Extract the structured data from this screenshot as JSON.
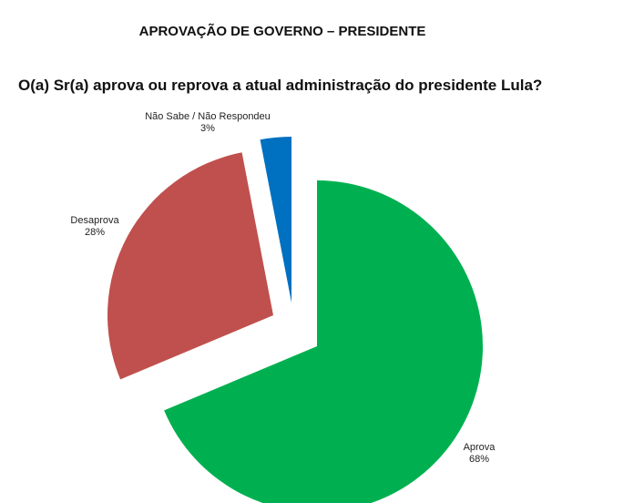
{
  "header": {
    "title": "APROVAÇÃO DE GOVERNO – PRESIDENTE"
  },
  "question": "O(a) Sr(a) aprova ou reprova a atual administração do presidente Lula?",
  "chart_data": {
    "type": "pie",
    "title": "O(a) Sr(a) aprova ou reprova a atual administração do presidente Lula?",
    "slices": [
      {
        "label": "Aprova",
        "value": 68,
        "value_label": "68%",
        "color": "#00b050"
      },
      {
        "label": "Desaprova",
        "value": 28,
        "value_label": "28%",
        "color": "#c0504d"
      },
      {
        "label": "Não Sabe / Não Respondeu",
        "value": 3,
        "value_label": "3%",
        "color": "#0070c0"
      }
    ],
    "exploded": true,
    "legend": "none"
  }
}
